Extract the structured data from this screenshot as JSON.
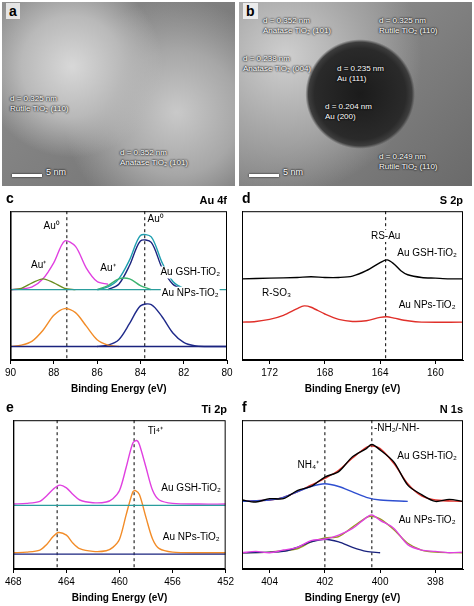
{
  "images": [
    {
      "panel": "a",
      "scale_bar": "5 nm",
      "labels": [
        {
          "d": "d = 0.325 nm",
          "phase": "Rutile TiO₂ (110)"
        },
        {
          "d": "d = 0.352 nm",
          "phase": "Anatase TiO₂ (101)"
        }
      ]
    },
    {
      "panel": "b",
      "scale_bar": "5 nm",
      "labels": [
        {
          "d": "d = 0.352 nm",
          "phase": "Anatase TiO₂ (101)"
        },
        {
          "d": "d = 0.325 nm",
          "phase": "Rutile TiO₂ (110)"
        },
        {
          "d": "d = 0.238 nm",
          "phase": "Anatase TiO₂ (004)"
        },
        {
          "d": "d = 0.235 nm",
          "phase": "Au (111)"
        },
        {
          "d": "d = 0.204 nm",
          "phase": "Au (200)"
        },
        {
          "d": "d = 0.249 nm",
          "phase": "Rutile TiO₂ (110)"
        }
      ]
    }
  ],
  "chart_data": [
    {
      "type": "line",
      "panel": "c",
      "title": "Au 4f",
      "x_label": "Binding Energy (eV)",
      "xlim": [
        90,
        80
      ],
      "xticks": [
        90,
        88,
        86,
        84,
        82,
        80
      ],
      "ylim": [
        0,
        110
      ],
      "tick_labels": "x",
      "grid": false,
      "vlines": [
        87.4,
        83.8
      ],
      "series": [
        {
          "color": "#2a9d9d",
          "x": [
            90,
            80
          ],
          "values": [
            52,
            52
          ]
        },
        {
          "color": "#6b8e23",
          "x": [
            90,
            89.5,
            89,
            88.5,
            88,
            87.5,
            87
          ],
          "values": [
            52,
            53,
            57,
            60,
            57,
            53,
            52
          ]
        },
        {
          "color": "#3cb371",
          "x": [
            86,
            85.5,
            85,
            84.5,
            84,
            83.5
          ],
          "values": [
            52,
            55,
            60,
            60,
            55,
            52
          ]
        },
        {
          "color": "#1a237e",
          "x": [
            85.5,
            85,
            84.5,
            84,
            83.5,
            83,
            82.5,
            82
          ],
          "values": [
            52,
            56,
            70,
            88,
            87,
            68,
            56,
            52
          ]
        },
        {
          "color": "#1f9fb0",
          "x": [
            86,
            85.5,
            85,
            84.5,
            84,
            83.5,
            83,
            82.5,
            82,
            81.5
          ],
          "values": [
            52,
            54,
            60,
            74,
            92,
            91,
            72,
            58,
            53,
            52
          ]
        },
        {
          "color": "#e040e0",
          "x": [
            90,
            89.5,
            89,
            88.5,
            88,
            87.5,
            87,
            86.5,
            86,
            85.5
          ],
          "values": [
            52,
            52.5,
            54,
            60,
            72,
            88,
            84,
            68,
            58,
            56
          ]
        },
        {
          "color": "#1a237e",
          "x": [
            90,
            80
          ],
          "values": [
            10,
            10
          ]
        },
        {
          "color": "#f28c28",
          "x": [
            90,
            89.5,
            89,
            88.5,
            88,
            87.5,
            87,
            86.5,
            86,
            85.5,
            85
          ],
          "values": [
            10,
            11,
            14,
            22,
            33,
            38,
            35,
            25,
            15,
            11,
            10
          ]
        },
        {
          "color": "#1f2a8a",
          "x": [
            86,
            85.5,
            85,
            84.5,
            84,
            83.5,
            83,
            82.5,
            82,
            81.5,
            81,
            80
          ],
          "values": [
            10,
            11,
            15,
            27,
            40,
            41,
            32,
            20,
            13,
            10.5,
            10,
            10
          ]
        }
      ],
      "annotations": [
        {
          "text": "Au⁺",
          "x": 88.7,
          "y": 66
        },
        {
          "text": "Au⁰",
          "x": 88.1,
          "y": 95
        },
        {
          "text": "Au⁺",
          "x": 85.5,
          "y": 64
        },
        {
          "text": "Au⁰",
          "x": 83.3,
          "y": 100
        },
        {
          "text": "Au GSH-TiO₂",
          "x": 81.7,
          "y": 61
        },
        {
          "text": "Au NPs-TiO₂",
          "x": 81.7,
          "y": 46
        }
      ]
    },
    {
      "type": "line",
      "panel": "d",
      "title": "S 2p",
      "x_label": "Binding Energy (eV)",
      "xlim": [
        174,
        158
      ],
      "xticks": [
        172,
        168,
        164,
        160
      ],
      "ylim": [
        0,
        110
      ],
      "tick_labels": "x",
      "grid": false,
      "vlines": [
        163.6
      ],
      "series": [
        {
          "color": "#000000",
          "x": [
            174,
            172,
            170,
            169,
            168,
            167,
            166,
            165,
            164,
            163.5,
            163,
            162.5,
            162,
            161,
            160,
            159,
            158
          ],
          "values": [
            60,
            60.5,
            61,
            61.5,
            61,
            61,
            62,
            66,
            72,
            74,
            71,
            66,
            63,
            61,
            60.5,
            60,
            60
          ]
        },
        {
          "color": "#e0302a",
          "x": [
            174,
            173,
            172,
            171,
            170,
            169.5,
            169,
            168,
            167,
            166,
            165,
            164,
            163.5,
            163,
            162,
            161,
            158
          ],
          "values": [
            28,
            28.5,
            30,
            33,
            38,
            40,
            39,
            34,
            30,
            28.5,
            29,
            31.5,
            32,
            31,
            29,
            28,
            28
          ]
        }
      ],
      "annotations": [
        {
          "text": "RS-Au",
          "x": 163.6,
          "y": 88
        },
        {
          "text": "R-SO₃",
          "x": 171.5,
          "y": 46
        },
        {
          "text": "Au GSH-TiO₂",
          "x": 160.6,
          "y": 75
        },
        {
          "text": "Au NPs-TiO₂",
          "x": 160.6,
          "y": 37
        }
      ]
    },
    {
      "type": "line",
      "panel": "e",
      "title": "Ti 2p",
      "x_label": "Binding Energy (eV)",
      "xlim": [
        468,
        452
      ],
      "xticks": [
        468,
        464,
        460,
        456,
        452
      ],
      "ylim": [
        0,
        110
      ],
      "tick_labels": "x",
      "grid": false,
      "vlines": [
        464.7,
        458.9
      ],
      "series": [
        {
          "color": "#2a9d9d",
          "x": [
            468,
            452
          ],
          "values": [
            47,
            47
          ]
        },
        {
          "color": "#e040e0",
          "x": [
            468,
            467,
            466,
            465.5,
            465,
            464.5,
            464,
            463.5,
            463,
            462,
            461,
            460.5,
            460,
            459.5,
            459,
            458.7,
            458.5,
            458,
            457.5,
            457,
            456,
            454,
            452
          ],
          "values": [
            48,
            48.5,
            50,
            54,
            59,
            62,
            60,
            55,
            51,
            49,
            49.5,
            52,
            58,
            75,
            93,
            95,
            92,
            75,
            58,
            51,
            48.5,
            48,
            48
          ]
        },
        {
          "color": "#1a237e",
          "x": [
            468,
            452
          ],
          "values": [
            11,
            11
          ]
        },
        {
          "color": "#f28c28",
          "x": [
            468,
            467,
            466,
            465.5,
            465,
            464.6,
            464,
            463.5,
            463,
            462,
            461,
            460.5,
            460,
            459.5,
            459,
            458.8,
            458.5,
            458,
            457.5,
            457,
            456,
            454,
            452
          ],
          "values": [
            12,
            12.5,
            14,
            18,
            24,
            27,
            25,
            19,
            15,
            13,
            13.5,
            16,
            22,
            40,
            57,
            58,
            55,
            38,
            22,
            15,
            12.5,
            12,
            12
          ]
        }
      ],
      "annotations": [
        {
          "text": "Ti⁴⁺",
          "x": 457.3,
          "y": 98
        },
        {
          "text": "Au GSH-TiO₂",
          "x": 454.6,
          "y": 56
        },
        {
          "text": "Au NPs-TiO₂",
          "x": 454.6,
          "y": 20
        }
      ]
    },
    {
      "type": "line",
      "panel": "f",
      "title": "N 1s",
      "x_label": "Binding Energy (eV)",
      "xlim": [
        405,
        397
      ],
      "xticks": [
        404,
        402,
        400,
        398
      ],
      "ylim": [
        0,
        110
      ],
      "tick_labels": "x",
      "grid": false,
      "vlines": [
        402,
        400.3
      ],
      "series": [
        {
          "color": "#000000",
          "x": [
            405,
            404.5,
            404,
            403.5,
            403,
            402.5,
            402,
            401.5,
            401,
            400.5,
            400.3,
            400,
            399.5,
            399,
            398.5,
            398,
            397.5,
            397
          ],
          "values": [
            51,
            49.5,
            52,
            52,
            58,
            61,
            68,
            72,
            83,
            89,
            92,
            88,
            79,
            62,
            55,
            50,
            51.5,
            50
          ]
        },
        {
          "color": "#2f4fd0",
          "x": [
            405,
            404,
            403.5,
            403,
            402.5,
            402,
            401.5,
            401,
            400.5,
            400,
            399
          ],
          "values": [
            50,
            51,
            53,
            57,
            61,
            63,
            61,
            57,
            53,
            51,
            50
          ]
        },
        {
          "color": "#e0302a",
          "x": [
            405,
            404,
            403.5,
            403,
            402.5,
            402,
            401.5,
            401,
            400.5,
            400.3,
            400,
            399.5,
            399,
            398.5,
            398,
            397
          ],
          "values": [
            50,
            51,
            53,
            57,
            62,
            67,
            73,
            82,
            90,
            91,
            89,
            78,
            63,
            54,
            51,
            50
          ]
        },
        {
          "color": "#e040e0",
          "x": [
            405,
            404.5,
            404,
            403.5,
            403,
            402.5,
            402,
            401.5,
            401,
            400.5,
            400.3,
            400,
            399.5,
            399,
            398.5,
            398,
            397.5,
            397
          ],
          "values": [
            12,
            13,
            12,
            14,
            16,
            21,
            22,
            25,
            30,
            38,
            40,
            36,
            30,
            18,
            14,
            13,
            12,
            12.5
          ]
        },
        {
          "color": "#1a237e",
          "x": [
            405,
            403.5,
            403,
            402.5,
            402,
            401.5,
            401,
            400.5,
            400
          ],
          "values": [
            12,
            13,
            16,
            20,
            22,
            20,
            16,
            13,
            12
          ]
        },
        {
          "color": "#9a9a20",
          "x": [
            405,
            404,
            403,
            402.5,
            402,
            401.5,
            401,
            400.5,
            400.3,
            400,
            399.5,
            399,
            398.5,
            398,
            397
          ],
          "values": [
            12,
            12.5,
            15,
            20,
            23,
            24,
            31,
            38,
            39,
            37,
            29,
            19,
            14,
            12.5,
            12
          ]
        }
      ],
      "annotations": [
        {
          "text": "NH₄⁺",
          "x": 402.6,
          "y": 73
        },
        {
          "text": "-NH₂/-NH-",
          "x": 399.4,
          "y": 100
        },
        {
          "text": "Au GSH-TiO₂",
          "x": 398.3,
          "y": 80
        },
        {
          "text": "Au NPs-TiO₂",
          "x": 398.3,
          "y": 32
        }
      ]
    }
  ]
}
